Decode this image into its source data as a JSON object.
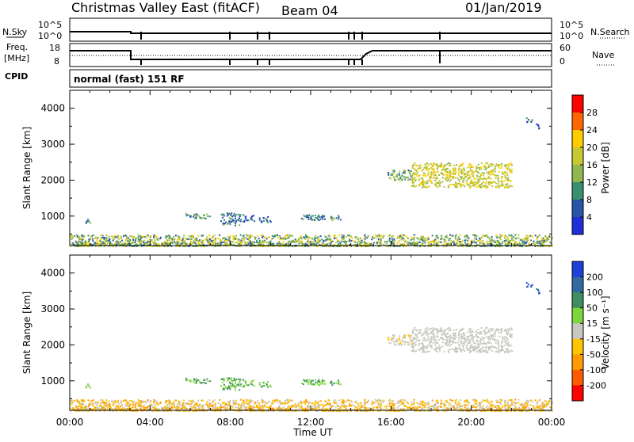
{
  "header": {
    "title": "Christmas Valley East (fitACF)",
    "beam": "Beam 04",
    "date": "01/Jan/2019"
  },
  "nsky_panel": {
    "left_label": "N.Sky",
    "right_label": "N.Search",
    "left_ticks": [
      "10^5",
      "10^0"
    ],
    "right_ticks": [
      "10^5",
      "10^0"
    ]
  },
  "freq_panel": {
    "left_label_1": "Freq.",
    "left_label_2": "[MHz]",
    "right_label": "Nave",
    "left_ticks": [
      "18",
      "8"
    ],
    "right_ticks": [
      "60",
      "0"
    ]
  },
  "cpid": {
    "label": "CPID",
    "value": "normal (fast) 151 RF"
  },
  "power_colorbar": {
    "label": "Power [dB]",
    "ticks": [
      "28",
      "24",
      "20",
      "16",
      "12",
      "8",
      "4"
    ],
    "colors": [
      "#ff0000",
      "#ff6600",
      "#ffcc00",
      "#c8c832",
      "#8fb84f",
      "#3a8f6e",
      "#2855a8",
      "#1f2fd8"
    ]
  },
  "velocity_colorbar": {
    "label": "Velocity [m s⁻¹]",
    "ticks": [
      "200",
      "100",
      "50",
      "15",
      "-15",
      "-50",
      "-100",
      "-200"
    ],
    "colors": [
      "#1f3fd8",
      "#2f6aa0",
      "#3f8f60",
      "#7cd63c",
      "#c8c8c0",
      "#ffc400",
      "#ff9a00",
      "#ff5a00",
      "#ff0000"
    ]
  },
  "x_axis": {
    "label": "Time UT",
    "ticks": [
      "00:00",
      "04:00",
      "08:00",
      "12:00",
      "16:00",
      "20:00",
      "00:00"
    ]
  },
  "y_axis": {
    "label": "Slant Range [km]",
    "ticks": [
      "4000",
      "3000",
      "2000",
      "1000"
    ]
  },
  "chart_data": {
    "type": "heatmap",
    "title": "Christmas Valley East (fitACF)",
    "xlabel": "Time UT",
    "ylabel": "Slant Range [km]",
    "xlim_hours": [
      0,
      24
    ],
    "ylim_km": [
      180,
      4500
    ],
    "echo_regions": [
      {
        "t_start": 0.7,
        "t_end": 1.0,
        "r_min": 800,
        "r_max": 950,
        "power_db": 8,
        "velocity": 15
      },
      {
        "t_start": 5.7,
        "t_end": 7.0,
        "r_min": 950,
        "r_max": 1100,
        "power_db": 10,
        "velocity": 50
      },
      {
        "t_start": 7.5,
        "t_end": 8.5,
        "r_min": 750,
        "r_max": 1100,
        "power_db": 8,
        "velocity": 50
      },
      {
        "t_start": 8.6,
        "t_end": 9.2,
        "r_min": 850,
        "r_max": 1050,
        "power_db": 7,
        "velocity": 50
      },
      {
        "t_start": 9.4,
        "t_end": 10.0,
        "r_min": 850,
        "r_max": 1000,
        "power_db": 7,
        "velocity": 50
      },
      {
        "t_start": 11.5,
        "t_end": 13.5,
        "r_min": 900,
        "r_max": 1050,
        "power_db": 9,
        "velocity": 50
      },
      {
        "t_start": 15.8,
        "t_end": 17.0,
        "r_min": 2000,
        "r_max": 2300,
        "power_db": 12,
        "velocity": -10
      },
      {
        "t_start": 17.0,
        "t_end": 22.0,
        "r_min": 1800,
        "r_max": 2500,
        "power_db": 18,
        "velocity": 0
      },
      {
        "t_start": 22.7,
        "t_end": 23.0,
        "r_min": 3600,
        "r_max": 3750,
        "power_db": 8,
        "velocity": 200
      },
      {
        "t_start": 23.2,
        "t_end": 23.4,
        "r_min": 3450,
        "r_max": 3600,
        "power_db": 6,
        "velocity": 200
      }
    ],
    "ground_scatter_band": {
      "r_min": 180,
      "r_max": 500,
      "power_db": 14,
      "velocity": -30
    }
  }
}
